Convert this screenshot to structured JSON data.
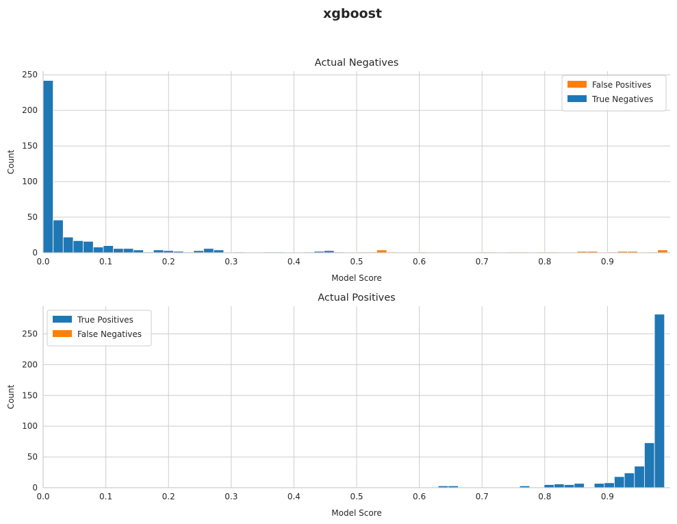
{
  "figure": {
    "title": "xgboost"
  },
  "colors": {
    "positive_class": "#1f77b4",
    "negative_class": "#ff7f0e",
    "grid": "#cccccc",
    "text": "#262626"
  },
  "chart_data": [
    {
      "type": "bar",
      "title": "Actual Negatives",
      "xlabel": "Model Score",
      "ylabel": "Count",
      "xlim": [
        0,
        1
      ],
      "ylim": [
        0,
        255
      ],
      "xticks": [
        0.0,
        0.1,
        0.2,
        0.3,
        0.4,
        0.5,
        0.6,
        0.7,
        0.8,
        0.9
      ],
      "xtick_labels": [
        "0.0",
        "0.1",
        "0.2",
        "0.3",
        "0.4",
        "0.5",
        "0.6",
        "0.7",
        "0.8",
        "0.9"
      ],
      "yticks": [
        0,
        50,
        100,
        150,
        200,
        250
      ],
      "ytick_labels": [
        "0",
        "50",
        "100",
        "150",
        "200",
        "250"
      ],
      "grid": true,
      "legend": "top-right",
      "bin_width": 0.016,
      "series": [
        {
          "name": "False Positives",
          "color": "#ff7f0e",
          "bins": [
            [
              0.5,
              1
            ],
            [
              0.516,
              1
            ],
            [
              0.532,
              4
            ],
            [
              0.548,
              1
            ],
            [
              0.596,
              1
            ],
            [
              0.692,
              1
            ],
            [
              0.708,
              1
            ],
            [
              0.74,
              1
            ],
            [
              0.756,
              1
            ],
            [
              0.788,
              1
            ],
            [
              0.804,
              1
            ],
            [
              0.852,
              2
            ],
            [
              0.868,
              2
            ],
            [
              0.9,
              1
            ],
            [
              0.916,
              2
            ],
            [
              0.932,
              2
            ],
            [
              0.964,
              1
            ],
            [
              0.98,
              4
            ]
          ]
        },
        {
          "name": "True Negatives",
          "color": "#1f77b4",
          "bins": [
            [
              0.0,
              242
            ],
            [
              0.016,
              46
            ],
            [
              0.032,
              22
            ],
            [
              0.048,
              17
            ],
            [
              0.064,
              16
            ],
            [
              0.08,
              8
            ],
            [
              0.096,
              10
            ],
            [
              0.112,
              6
            ],
            [
              0.128,
              6
            ],
            [
              0.144,
              4
            ],
            [
              0.16,
              1
            ],
            [
              0.176,
              4
            ],
            [
              0.192,
              3
            ],
            [
              0.208,
              2
            ],
            [
              0.224,
              1
            ],
            [
              0.24,
              3
            ],
            [
              0.256,
              6
            ],
            [
              0.272,
              4
            ],
            [
              0.304,
              1
            ],
            [
              0.352,
              1
            ],
            [
              0.368,
              1
            ],
            [
              0.416,
              1
            ],
            [
              0.432,
              2
            ],
            [
              0.448,
              3
            ],
            [
              0.464,
              1
            ]
          ]
        }
      ]
    },
    {
      "type": "bar",
      "title": "Actual Positives",
      "xlabel": "Model Score",
      "ylabel": "Count",
      "xlim": [
        0,
        1
      ],
      "ylim": [
        0,
        295
      ],
      "xticks": [
        0.0,
        0.1,
        0.2,
        0.3,
        0.4,
        0.5,
        0.6,
        0.7,
        0.8,
        0.9
      ],
      "xtick_labels": [
        "0.0",
        "0.1",
        "0.2",
        "0.3",
        "0.4",
        "0.5",
        "0.6",
        "0.7",
        "0.8",
        "0.9"
      ],
      "yticks": [
        0,
        50,
        100,
        150,
        200,
        250
      ],
      "ytick_labels": [
        "0",
        "50",
        "100",
        "150",
        "200",
        "250"
      ],
      "grid": true,
      "legend": "top-left",
      "bin_width": 0.016,
      "series": [
        {
          "name": "True Positives",
          "color": "#1f77b4",
          "bins": [
            [
              0.5,
              1
            ],
            [
              0.565,
              1
            ],
            [
              0.63,
              3
            ],
            [
              0.646,
              3
            ],
            [
              0.68,
              1
            ],
            [
              0.76,
              3
            ],
            [
              0.799,
              5
            ],
            [
              0.815,
              6
            ],
            [
              0.831,
              5
            ],
            [
              0.847,
              7
            ],
            [
              0.863,
              1
            ],
            [
              0.879,
              7
            ],
            [
              0.895,
              8
            ],
            [
              0.911,
              18
            ],
            [
              0.927,
              24
            ],
            [
              0.943,
              35
            ],
            [
              0.959,
              73
            ],
            [
              0.975,
              282
            ]
          ]
        },
        {
          "name": "False Negatives",
          "color": "#ff7f0e",
          "bins": [
            [
              0.004,
              1
            ]
          ]
        }
      ]
    }
  ]
}
